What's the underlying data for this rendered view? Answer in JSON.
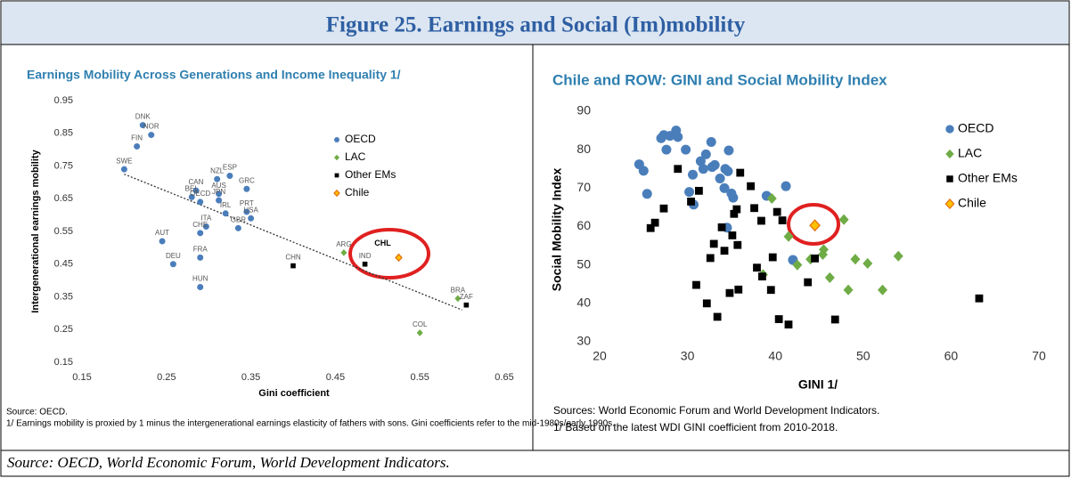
{
  "header": {
    "title": "Figure 25. Earnings and Social (Im)mobility"
  },
  "chart_data": [
    {
      "type": "scatter",
      "title": "Earnings Mobility Across Generations and Income Inequality 1/",
      "xlabel": "Gini coefficient",
      "ylabel": "Intergenerational earnings mobility",
      "xlim": [
        0.15,
        0.65
      ],
      "xticks": [
        0.15,
        0.25,
        0.35,
        0.45,
        0.55,
        0.65
      ],
      "ylim": [
        0.15,
        0.95
      ],
      "yticks": [
        0.15,
        0.25,
        0.35,
        0.45,
        0.55,
        0.65,
        0.75,
        0.85,
        0.95
      ],
      "legend": "upper right",
      "grid": false,
      "series": [
        {
          "name": "OECD",
          "color": "#4a7ebb",
          "marker": "circle",
          "labels": [
            "DNK",
            "NOR",
            "FIN",
            "SWE",
            "CAN",
            "BEL",
            "NZL",
            "ESP",
            "GRC",
            "AUS",
            "JPN",
            "OECD",
            "IRL",
            "PRT",
            "USA",
            "GBR",
            "ITA",
            "CHE",
            "FRA",
            "AUT",
            "DEU",
            "HUN"
          ],
          "x": [
            0.222,
            0.232,
            0.215,
            0.2,
            0.285,
            0.28,
            0.31,
            0.325,
            0.345,
            0.312,
            0.312,
            0.29,
            0.32,
            0.345,
            0.35,
            0.335,
            0.297,
            0.29,
            0.29,
            0.245,
            0.258,
            0.29
          ],
          "y": [
            0.875,
            0.845,
            0.81,
            0.74,
            0.675,
            0.655,
            0.71,
            0.72,
            0.68,
            0.665,
            0.645,
            0.64,
            0.605,
            0.61,
            0.59,
            0.56,
            0.565,
            0.545,
            0.47,
            0.52,
            0.45,
            0.38
          ]
        },
        {
          "name": "LAC",
          "color": "#6fac46",
          "marker": "diamond",
          "labels": [
            "ARG",
            "COL",
            "BRA"
          ],
          "x": [
            0.46,
            0.55,
            0.595
          ],
          "y": [
            0.485,
            0.24,
            0.345
          ]
        },
        {
          "name": "Other EMs",
          "color": "#000000",
          "marker": "square",
          "labels": [
            "CHN",
            "IND",
            "ZAF"
          ],
          "x": [
            0.4,
            0.485,
            0.605
          ],
          "y": [
            0.445,
            0.45,
            0.325
          ]
        },
        {
          "name": "Chile",
          "color": "#ffc000",
          "marker": "chile",
          "labels": [
            "CHL"
          ],
          "x": [
            0.525
          ],
          "y": [
            0.47
          ]
        }
      ],
      "trendline": {
        "x": [
          0.2,
          0.6
        ],
        "y": [
          0.725,
          0.31
        ]
      },
      "notes": [
        "Source: OECD.",
        "1/ Earnings mobility is proxied by 1 minus the intergenerational earnings elasticity of fathers with sons. Gini coefficients refer to the mid-1980s/early 1990s."
      ]
    },
    {
      "type": "scatter",
      "title": "Chile and ROW: GINI and Social Mobility Index",
      "xlabel": "GINI 1/",
      "ylabel": "Social Mobility Index",
      "xlim": [
        20,
        70
      ],
      "xticks": [
        20,
        30,
        40,
        50,
        60,
        70
      ],
      "ylim": [
        30,
        90
      ],
      "yticks": [
        30,
        40,
        50,
        60,
        70,
        80,
        90
      ],
      "legend": "upper right",
      "grid": false,
      "series": [
        {
          "name": "OECD",
          "color": "#4a7ebb",
          "marker": "circle",
          "x": [
            24.5,
            25,
            25.4,
            27,
            27.3,
            27.6,
            28,
            28.7,
            28.9,
            29.8,
            30.2,
            30.6,
            30.7,
            31.5,
            31.8,
            32.1,
            32.7,
            32.8,
            33.1,
            33.7,
            34.3,
            34.6,
            34.7,
            34.2,
            35,
            35.2,
            34.5,
            39,
            41.2,
            42
          ],
          "y": [
            76.2,
            74.5,
            68.5,
            83,
            83.8,
            80,
            83.6,
            85,
            83.3,
            80,
            69,
            73.5,
            65.7,
            77,
            75,
            78.8,
            82,
            75.5,
            76,
            72.5,
            75,
            74.4,
            79.8,
            70,
            68.6,
            67.5,
            59.7,
            68,
            70.5,
            51.3
          ]
        },
        {
          "name": "LAC",
          "color": "#6fac46",
          "marker": "diamond",
          "x": [
            39.6,
            41.5,
            42.5,
            38.6,
            44,
            45.4,
            45.5,
            46.2,
            47.8,
            48.3,
            49.1,
            50.5,
            52.2,
            54
          ],
          "y": [
            67.3,
            57.4,
            50,
            47.5,
            51.5,
            52.7,
            54,
            46.7,
            61.8,
            43.5,
            51.5,
            50.4,
            43.5,
            52.3
          ]
        },
        {
          "name": "Other EMs",
          "color": "#000000",
          "marker": "square",
          "x": [
            25.8,
            26.3,
            27.3,
            28.9,
            30.4,
            31.3,
            31,
            32.2,
            32.6,
            33,
            33.4,
            33.9,
            34.2,
            34.8,
            35.1,
            35.3,
            35.6,
            35.7,
            35.8,
            36,
            37.2,
            37.6,
            37.9,
            38.4,
            38.5,
            39.5,
            39.7,
            40.2,
            40.4,
            40.8,
            41.5,
            43.7,
            44.5,
            46.8,
            63.2
          ],
          "y": [
            59.6,
            61,
            64.7,
            75,
            66.5,
            69.3,
            44.8,
            40,
            51.8,
            55.5,
            36.5,
            59.8,
            53.7,
            42.7,
            57.7,
            63.3,
            64.5,
            55.2,
            43.6,
            74,
            70.5,
            64.8,
            49.3,
            61.5,
            47,
            43.5,
            52,
            63.8,
            35.9,
            61.6,
            34.5,
            45.5,
            51.7,
            35.8,
            41.3
          ]
        },
        {
          "name": "Chile",
          "color": "#ffc000",
          "marker": "chile",
          "x": [
            44.5
          ],
          "y": [
            60.3
          ]
        }
      ],
      "notes": [
        "Sources: World Economic Forum and World Development Indicators.",
        "1/ Based on the latest WDI GINI coefficient from 2010-2018."
      ]
    }
  ],
  "footer": {
    "source": "Source: OECD, World Economic Forum, World Development Indicators."
  }
}
